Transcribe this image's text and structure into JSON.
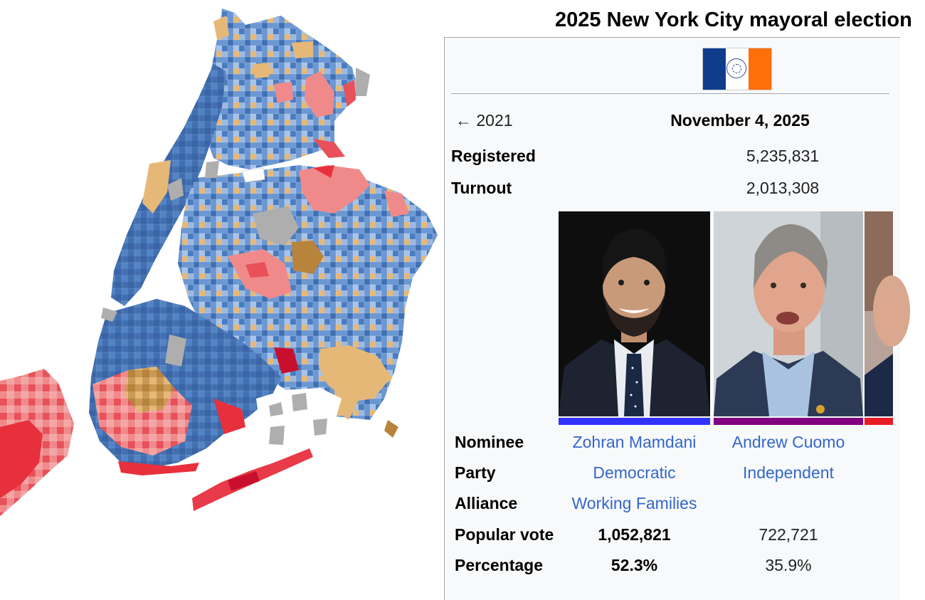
{
  "infobox": {
    "title": "2025 New York City mayoral election",
    "previous_election": "← 2021",
    "date": "November 4, 2025",
    "registered_label": "Registered",
    "registered_value": "5,235,831",
    "turnout_label": "Turnout",
    "turnout_value": "2,013,308",
    "flag_colors": [
      "#0f3d8c",
      "#ffffff",
      "#ff6f0a"
    ],
    "row_labels": {
      "nominee": "Nominee",
      "party": "Party",
      "alliance": "Alliance",
      "popular_vote": "Popular vote",
      "percentage": "Percentage"
    },
    "candidates": [
      {
        "nominee": "Zohran Mamdani",
        "party": "Democratic",
        "alliance": "Working Families",
        "popular_vote": "1,052,821",
        "percentage": "52.3%",
        "bar_color": "#3333ff",
        "photo": "portrait-bearded-man-dark-suit"
      },
      {
        "nominee": "Andrew Cuomo",
        "party": "Independent",
        "alliance": "",
        "popular_vote": "722,721",
        "percentage": "35.9%",
        "bar_color": "#800080",
        "photo": "portrait-gray-haired-man-blue-shirt"
      },
      {
        "bar_color": "#e81b23",
        "photo": "portrait-partially-visible"
      }
    ]
  },
  "map": {
    "legend_colors": [
      "#3f6fb3",
      "#5c8fd0",
      "#9db9e0",
      "#e6b878",
      "#b8843c",
      "#f08a8a",
      "#e83a48",
      "#aeaeae"
    ]
  }
}
